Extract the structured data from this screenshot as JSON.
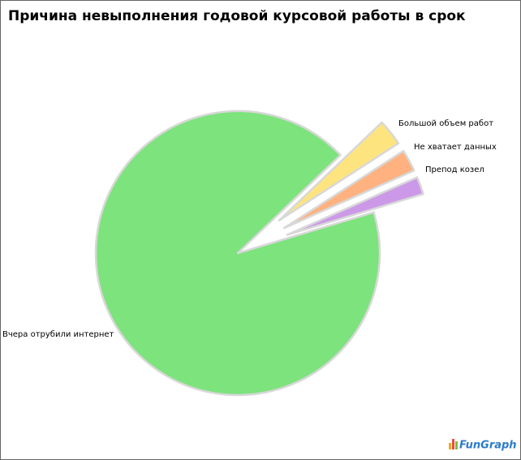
{
  "chart_data": {
    "type": "pie",
    "title": "Причина невыполнения годовой курсовой работы в срок",
    "categories": [
      "Вчера отрубили интернет",
      "Большой объем работ",
      "Не хватает данных",
      "Препод козел"
    ],
    "values": [
      92.5,
      3,
      2.5,
      2
    ],
    "colors": [
      "#7de37d",
      "#fde47f",
      "#ffb27f",
      "#cc99e8"
    ],
    "watermark": "FunGraph"
  }
}
